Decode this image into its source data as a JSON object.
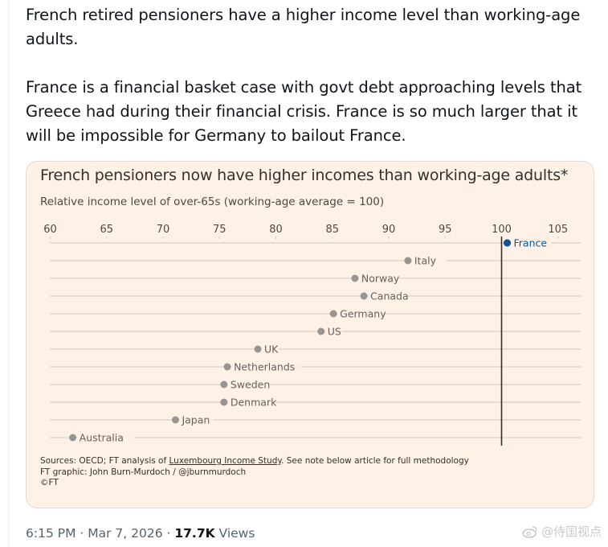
{
  "tweet": {
    "paragraphs": [
      "French retired pensioners have a higher income level than working-age adults.",
      "France is a financial basket case with govt debt approaching levels that Greece had during their financial crisis. France is so much larger that it will be impossible for Germany to bailout France."
    ],
    "timestamp": "6:15 PM · Mar 7, 2026 · ",
    "views_count": "17.7K",
    "views_label": " Views"
  },
  "card": {
    "source_prefix": "Sources: OECD; FT analysis of ",
    "source_link": "Luxembourg Income Study",
    "source_suffix": ". See note below article for full methodology",
    "credit": "FT graphic: John Burn-Murdoch / @jburnmurdoch",
    "copyright": "©FT"
  },
  "watermark": {
    "text": "@侍国视点"
  },
  "colors": {
    "highlight": "#0f5499",
    "dot": "#999592",
    "grid": "#cfc7bf",
    "card_bg": "#fff1e5"
  },
  "chart_data": {
    "type": "scatter",
    "title": "French pensioners now have higher incomes than working-age adults*",
    "subtitle": "Relative income level of over-65s (working-age average = 100)",
    "xlabel": "",
    "ylabel": "",
    "x_ticks": [
      60,
      65,
      70,
      75,
      80,
      85,
      90,
      95,
      100,
      105
    ],
    "x_tick_labels": [
      "60",
      "65",
      "70",
      "75",
      "80",
      "85",
      "90",
      "95",
      "100",
      "105"
    ],
    "xlim": [
      60,
      107
    ],
    "reference_line": 100,
    "grid": true,
    "categories": [
      "France",
      "Italy",
      "Norway",
      "Canada",
      "Germany",
      "US",
      "UK",
      "Netherlands",
      "Sweden",
      "Denmark",
      "Japan",
      "Australia"
    ],
    "values": [
      100.5,
      91.7,
      87.0,
      87.8,
      85.1,
      84.0,
      78.4,
      75.7,
      75.4,
      75.4,
      71.1,
      62.0
    ],
    "highlight": "France"
  }
}
